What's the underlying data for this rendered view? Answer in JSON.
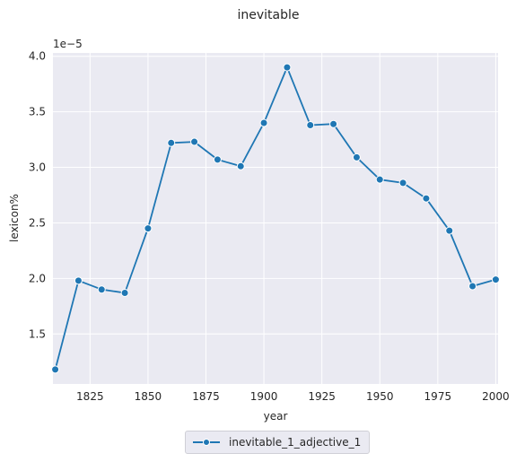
{
  "chart_data": {
    "type": "line",
    "title": "inevitable",
    "xlabel": "year",
    "ylabel": "lexicon%",
    "y_offset_label": "1e−5",
    "xlim": [
      1809,
      2001
    ],
    "ylim": [
      1.05,
      4.03
    ],
    "x_ticks": [
      1825,
      1850,
      1875,
      1900,
      1925,
      1950,
      1975,
      2000
    ],
    "y_ticks": [
      1.5,
      2.0,
      2.5,
      3.0,
      3.5,
      4.0
    ],
    "y_tick_labels": [
      "1.5",
      "2.0",
      "2.5",
      "3.0",
      "3.5",
      "4.0"
    ],
    "grid": true,
    "legend_position": "bottom-center",
    "series": [
      {
        "name": "inevitable_1_adjective_1",
        "color": "#1f77b4",
        "marker": "circle",
        "x": [
          1810,
          1820,
          1830,
          1840,
          1850,
          1860,
          1870,
          1880,
          1890,
          1900,
          1910,
          1920,
          1930,
          1940,
          1950,
          1960,
          1970,
          1980,
          1990,
          2000
        ],
        "y": [
          1.18,
          1.98,
          1.9,
          1.87,
          2.45,
          3.22,
          3.23,
          3.07,
          3.01,
          3.4,
          3.9,
          3.38,
          3.39,
          3.09,
          2.89,
          2.86,
          2.72,
          2.43,
          1.93,
          1.99
        ]
      }
    ]
  }
}
